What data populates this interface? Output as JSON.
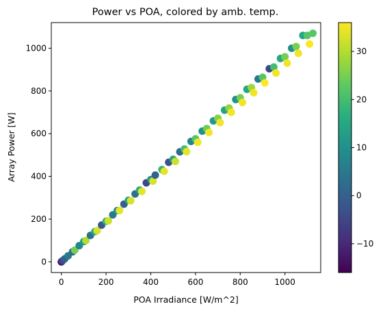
{
  "chart_data": {
    "type": "scatter",
    "title": "Power vs POA, colored by amb. temp.",
    "xlabel": "POA Irradiance [W/m^2]",
    "ylabel": "Array Power [W]",
    "xlim": [
      -45,
      1160
    ],
    "ylim": [
      -50,
      1120
    ],
    "x_ticks": [
      0,
      200,
      400,
      600,
      800,
      1000
    ],
    "y_ticks": [
      0,
      200,
      400,
      600,
      800,
      1000
    ],
    "grid": false,
    "colormap": "viridis",
    "colorbar": {
      "min": -16,
      "max": 36,
      "ticks": [
        -10,
        0,
        10,
        20,
        30
      ]
    },
    "points": [
      {
        "x": 0,
        "y": 0,
        "t": -16
      },
      {
        "x": 2,
        "y": 2,
        "t": -14
      },
      {
        "x": 5,
        "y": 5,
        "t": -5
      },
      {
        "x": 15,
        "y": 14,
        "t": 0
      },
      {
        "x": 30,
        "y": 28,
        "t": 5
      },
      {
        "x": 50,
        "y": 47,
        "t": 2
      },
      {
        "x": 60,
        "y": 55,
        "t": 25
      },
      {
        "x": 80,
        "y": 76,
        "t": 8
      },
      {
        "x": 100,
        "y": 95,
        "t": 12
      },
      {
        "x": 110,
        "y": 100,
        "t": 30
      },
      {
        "x": 130,
        "y": 124,
        "t": 3
      },
      {
        "x": 150,
        "y": 142,
        "t": 15
      },
      {
        "x": 160,
        "y": 146,
        "t": 33
      },
      {
        "x": 180,
        "y": 172,
        "t": -2
      },
      {
        "x": 200,
        "y": 190,
        "t": 18
      },
      {
        "x": 210,
        "y": 192,
        "t": 32
      },
      {
        "x": 230,
        "y": 220,
        "t": 5
      },
      {
        "x": 250,
        "y": 240,
        "t": 10
      },
      {
        "x": 260,
        "y": 240,
        "t": 34
      },
      {
        "x": 280,
        "y": 270,
        "t": 0
      },
      {
        "x": 300,
        "y": 288,
        "t": 14
      },
      {
        "x": 310,
        "y": 286,
        "t": 33
      },
      {
        "x": 330,
        "y": 318,
        "t": 3
      },
      {
        "x": 350,
        "y": 336,
        "t": 16
      },
      {
        "x": 360,
        "y": 330,
        "t": 34
      },
      {
        "x": 380,
        "y": 370,
        "t": -5
      },
      {
        "x": 400,
        "y": 385,
        "t": 12
      },
      {
        "x": 410,
        "y": 378,
        "t": 33
      },
      {
        "x": 420,
        "y": 406,
        "t": 0
      },
      {
        "x": 450,
        "y": 432,
        "t": 18
      },
      {
        "x": 460,
        "y": 424,
        "t": 34
      },
      {
        "x": 480,
        "y": 466,
        "t": -3
      },
      {
        "x": 500,
        "y": 480,
        "t": 15
      },
      {
        "x": 510,
        "y": 470,
        "t": 32
      },
      {
        "x": 530,
        "y": 515,
        "t": 2
      },
      {
        "x": 550,
        "y": 528,
        "t": 20
      },
      {
        "x": 560,
        "y": 516,
        "t": 34
      },
      {
        "x": 580,
        "y": 564,
        "t": 8
      },
      {
        "x": 600,
        "y": 576,
        "t": 22
      },
      {
        "x": 610,
        "y": 560,
        "t": 35
      },
      {
        "x": 630,
        "y": 612,
        "t": 10
      },
      {
        "x": 650,
        "y": 624,
        "t": 24
      },
      {
        "x": 660,
        "y": 606,
        "t": 35
      },
      {
        "x": 680,
        "y": 660,
        "t": 12
      },
      {
        "x": 700,
        "y": 672,
        "t": 26
      },
      {
        "x": 710,
        "y": 652,
        "t": 35
      },
      {
        "x": 730,
        "y": 710,
        "t": 14
      },
      {
        "x": 750,
        "y": 720,
        "t": 27
      },
      {
        "x": 760,
        "y": 700,
        "t": 35
      },
      {
        "x": 780,
        "y": 760,
        "t": 10
      },
      {
        "x": 800,
        "y": 768,
        "t": 25
      },
      {
        "x": 810,
        "y": 746,
        "t": 35
      },
      {
        "x": 830,
        "y": 808,
        "t": 15
      },
      {
        "x": 850,
        "y": 816,
        "t": 28
      },
      {
        "x": 860,
        "y": 792,
        "t": 35
      },
      {
        "x": 880,
        "y": 856,
        "t": 5
      },
      {
        "x": 900,
        "y": 864,
        "t": 22
      },
      {
        "x": 910,
        "y": 838,
        "t": 36
      },
      {
        "x": 930,
        "y": 904,
        "t": -5
      },
      {
        "x": 950,
        "y": 912,
        "t": 20
      },
      {
        "x": 960,
        "y": 884,
        "t": 35
      },
      {
        "x": 980,
        "y": 952,
        "t": 15
      },
      {
        "x": 1000,
        "y": 960,
        "t": 25
      },
      {
        "x": 1010,
        "y": 930,
        "t": 35
      },
      {
        "x": 1030,
        "y": 1000,
        "t": 10
      },
      {
        "x": 1050,
        "y": 1008,
        "t": 25
      },
      {
        "x": 1060,
        "y": 976,
        "t": 35
      },
      {
        "x": 1080,
        "y": 1060,
        "t": 15
      },
      {
        "x": 1100,
        "y": 1060,
        "t": 22
      },
      {
        "x": 1110,
        "y": 1020,
        "t": 36
      },
      {
        "x": 1125,
        "y": 1070,
        "t": 22
      }
    ]
  }
}
